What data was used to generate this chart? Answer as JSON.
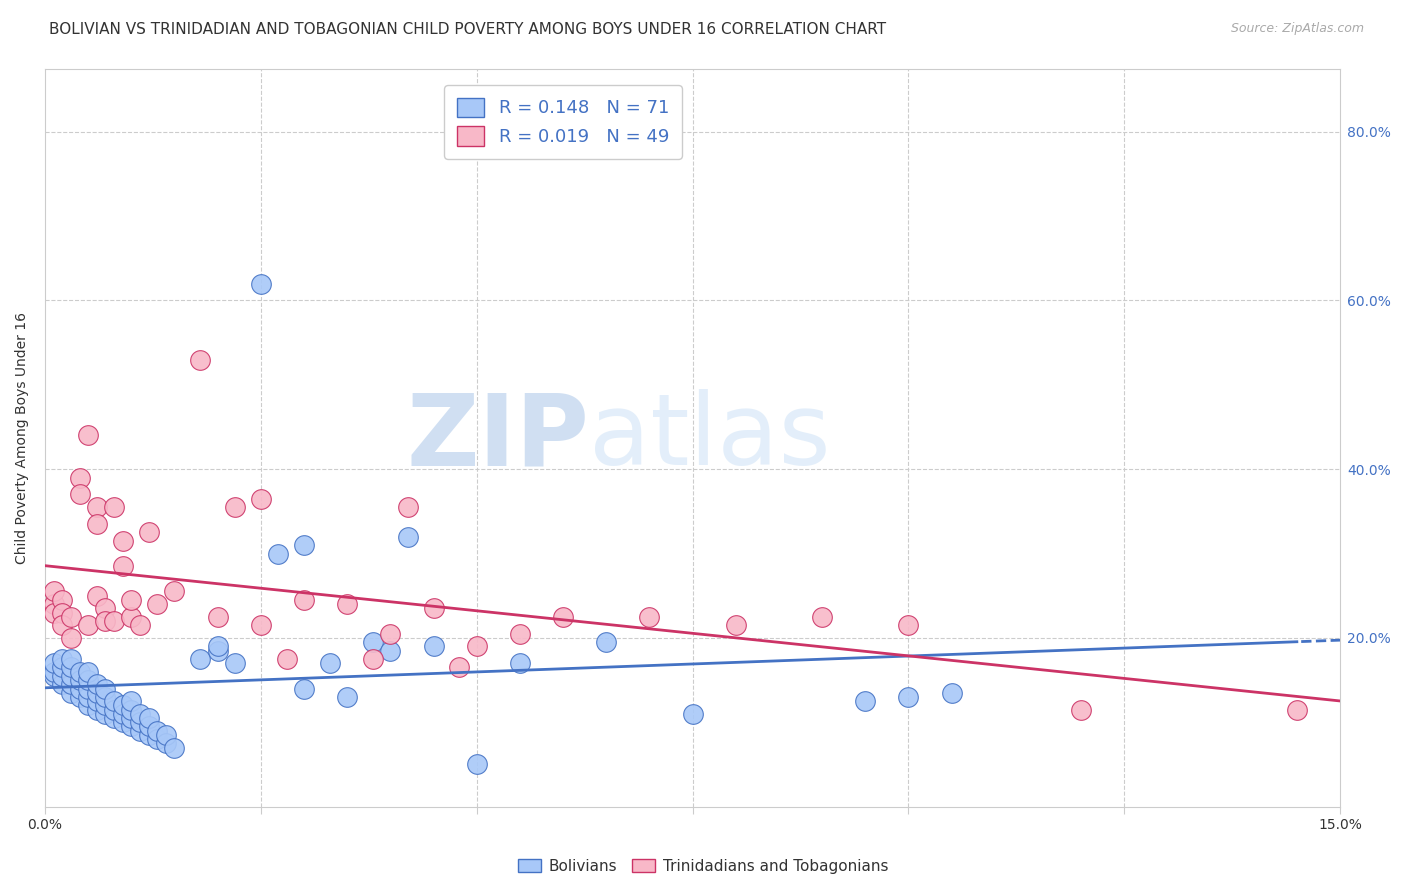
{
  "title": "BOLIVIAN VS TRINIDADIAN AND TOBAGONIAN CHILD POVERTY AMONG BOYS UNDER 16 CORRELATION CHART",
  "source": "Source: ZipAtlas.com",
  "ylabel": "Child Poverty Among Boys Under 16",
  "xlim": [
    0.0,
    0.15
  ],
  "ylim": [
    0.0,
    0.875
  ],
  "ytick_vals": [
    0.0,
    0.2,
    0.4,
    0.6,
    0.8
  ],
  "ytick_labels": [
    "",
    "20.0%",
    "40.0%",
    "60.0%",
    "80.0%"
  ],
  "xtick_vals": [
    0.0,
    0.025,
    0.05,
    0.075,
    0.1,
    0.125,
    0.15
  ],
  "xtick_labels": [
    "0.0%",
    "",
    "",
    "",
    "",
    "",
    "15.0%"
  ],
  "blue_R": 0.148,
  "blue_N": 71,
  "pink_R": 0.019,
  "pink_N": 49,
  "blue_fill": "#a8c8f8",
  "blue_edge": "#4472c4",
  "pink_fill": "#f8b8c8",
  "pink_edge": "#cc3366",
  "blue_line_color": "#4472c4",
  "pink_line_color": "#cc3366",
  "blue_scatter_x": [
    0.001,
    0.001,
    0.001,
    0.002,
    0.002,
    0.002,
    0.002,
    0.003,
    0.003,
    0.003,
    0.003,
    0.003,
    0.004,
    0.004,
    0.004,
    0.004,
    0.005,
    0.005,
    0.005,
    0.005,
    0.005,
    0.006,
    0.006,
    0.006,
    0.006,
    0.007,
    0.007,
    0.007,
    0.007,
    0.008,
    0.008,
    0.008,
    0.009,
    0.009,
    0.009,
    0.01,
    0.01,
    0.01,
    0.01,
    0.011,
    0.011,
    0.011,
    0.012,
    0.012,
    0.012,
    0.013,
    0.013,
    0.014,
    0.014,
    0.015,
    0.018,
    0.02,
    0.02,
    0.022,
    0.025,
    0.027,
    0.03,
    0.03,
    0.033,
    0.035,
    0.038,
    0.04,
    0.042,
    0.045,
    0.05,
    0.055,
    0.065,
    0.075,
    0.095,
    0.1,
    0.105
  ],
  "blue_scatter_y": [
    0.155,
    0.16,
    0.17,
    0.145,
    0.155,
    0.165,
    0.175,
    0.135,
    0.145,
    0.155,
    0.165,
    0.175,
    0.13,
    0.14,
    0.15,
    0.16,
    0.12,
    0.13,
    0.14,
    0.15,
    0.16,
    0.115,
    0.125,
    0.135,
    0.145,
    0.11,
    0.12,
    0.13,
    0.14,
    0.105,
    0.115,
    0.125,
    0.1,
    0.11,
    0.12,
    0.095,
    0.105,
    0.115,
    0.125,
    0.09,
    0.1,
    0.11,
    0.085,
    0.095,
    0.105,
    0.08,
    0.09,
    0.075,
    0.085,
    0.07,
    0.175,
    0.185,
    0.19,
    0.17,
    0.62,
    0.3,
    0.31,
    0.14,
    0.17,
    0.13,
    0.195,
    0.185,
    0.32,
    0.19,
    0.05,
    0.17,
    0.195,
    0.11,
    0.125,
    0.13,
    0.135
  ],
  "pink_scatter_x": [
    0.001,
    0.001,
    0.001,
    0.002,
    0.002,
    0.002,
    0.003,
    0.003,
    0.004,
    0.004,
    0.005,
    0.005,
    0.006,
    0.006,
    0.006,
    0.007,
    0.007,
    0.008,
    0.008,
    0.009,
    0.009,
    0.01,
    0.01,
    0.011,
    0.012,
    0.013,
    0.015,
    0.018,
    0.02,
    0.022,
    0.025,
    0.025,
    0.028,
    0.03,
    0.035,
    0.038,
    0.04,
    0.042,
    0.045,
    0.048,
    0.05,
    0.055,
    0.06,
    0.07,
    0.08,
    0.09,
    0.1,
    0.12,
    0.145
  ],
  "pink_scatter_y": [
    0.24,
    0.255,
    0.23,
    0.245,
    0.23,
    0.215,
    0.2,
    0.225,
    0.39,
    0.37,
    0.44,
    0.215,
    0.355,
    0.335,
    0.25,
    0.235,
    0.22,
    0.355,
    0.22,
    0.285,
    0.315,
    0.225,
    0.245,
    0.215,
    0.325,
    0.24,
    0.255,
    0.53,
    0.225,
    0.355,
    0.365,
    0.215,
    0.175,
    0.245,
    0.24,
    0.175,
    0.205,
    0.355,
    0.235,
    0.165,
    0.19,
    0.205,
    0.225,
    0.225,
    0.215,
    0.225,
    0.215,
    0.115,
    0.115
  ],
  "watermark_line1": "ZIP",
  "watermark_line2": "atlas",
  "background_color": "#ffffff",
  "grid_color": "#cccccc",
  "title_fontsize": 11,
  "axis_label_fontsize": 10,
  "tick_fontsize": 10,
  "legend_fontsize": 13
}
